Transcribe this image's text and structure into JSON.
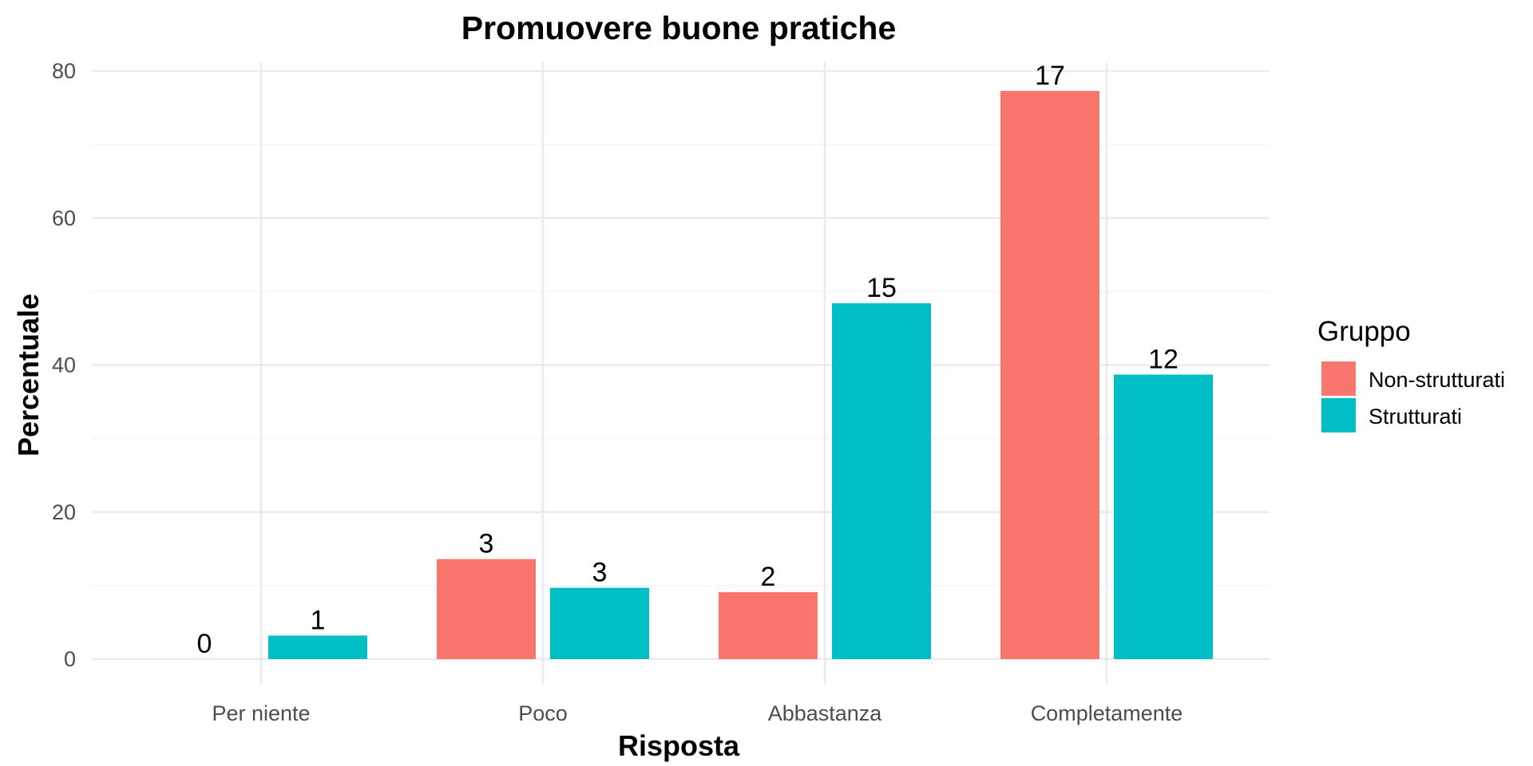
{
  "chart_data": {
    "type": "bar",
    "title": "Promuovere buone pratiche",
    "xlabel": "Risposta",
    "ylabel": "Percentuale",
    "ylim": [
      0,
      80
    ],
    "y_ticks": [
      0,
      20,
      40,
      60,
      80
    ],
    "grid": true,
    "categories": [
      "Per niente",
      "Poco",
      "Abbastanza",
      "Completamente"
    ],
    "series": [
      {
        "name": "Non-strutturati",
        "color": "#F8766D",
        "values": [
          0,
          13.6,
          9.1,
          77.3
        ],
        "labels": [
          "0",
          "3",
          "2",
          "17"
        ]
      },
      {
        "name": "Strutturati",
        "color": "#00BFC4",
        "values": [
          3.2,
          9.7,
          48.4,
          38.7
        ],
        "labels": [
          "1",
          "3",
          "15",
          "12"
        ]
      }
    ],
    "legend": {
      "title": "Gruppo",
      "position": "right"
    }
  }
}
